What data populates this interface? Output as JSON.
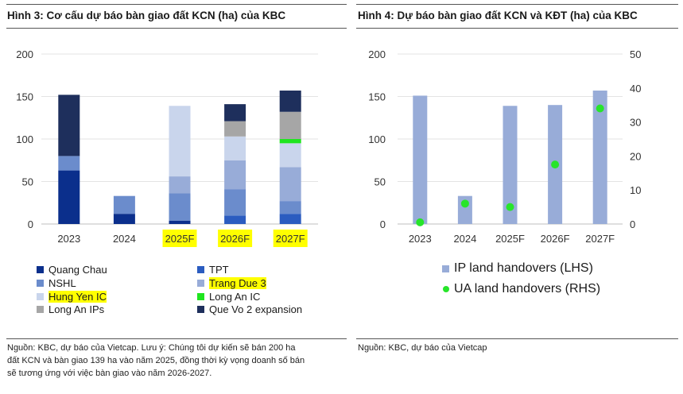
{
  "left": {
    "title": "Hình 3: Cơ cấu dự báo bàn giao đất KCN (ha) của KBC",
    "source": [
      "Nguồn: KBC, dự báo của Vietcap. Lưu ý: Chúng tôi dự kiến sẽ bán 200 ha",
      "đất KCN và bàn giao 139 ha vào năm 2025, đồng thời kỳ vọng doanh số bán",
      "sẽ tương ứng với việc bàn giao vào năm 2026-2027."
    ]
  },
  "right": {
    "title": "Hình 4: Dự báo bàn giao đất KCN và KĐT (ha) của KBC",
    "source": "Nguồn: KBC, dự báo của Vietcap"
  },
  "chart_data": [
    {
      "type": "bar",
      "stacked": true,
      "title": "Hình 3: Cơ cấu dự báo bàn giao đất KCN (ha) của KBC",
      "categories": [
        "2023",
        "2024",
        "2025F",
        "2026F",
        "2027F"
      ],
      "highlighted_categories": [
        "2025F",
        "2026F",
        "2027F"
      ],
      "ylim": [
        0,
        200
      ],
      "yticks": [
        "0",
        "50",
        "100",
        "150",
        "200"
      ],
      "grid": true,
      "series": [
        {
          "name": "Quang Chau",
          "color": "#0b2f8c",
          "values": [
            63,
            12,
            4,
            0,
            0
          ],
          "highlight": false
        },
        {
          "name": "TPT",
          "color": "#2b5cc0",
          "values": [
            0,
            0,
            0,
            10,
            12
          ],
          "highlight": false
        },
        {
          "name": "NSHL",
          "color": "#6b8ccc",
          "values": [
            17,
            21,
            32,
            31,
            15
          ],
          "highlight": false
        },
        {
          "name": "Trang Due 3",
          "color": "#98acd8",
          "values": [
            0,
            0,
            20,
            34,
            40
          ],
          "highlight": true
        },
        {
          "name": "Hung Yen IC",
          "color": "#c9d5ec",
          "values": [
            0,
            0,
            83,
            28,
            28
          ],
          "highlight": true
        },
        {
          "name": "Long An IC",
          "color": "#1fe51f",
          "values": [
            0,
            0,
            0,
            0,
            5
          ],
          "highlight": false
        },
        {
          "name": "Long An IPs",
          "color": "#a6a6a6",
          "values": [
            0,
            0,
            0,
            18,
            32
          ],
          "highlight": false
        },
        {
          "name": "Que Vo 2 expansion",
          "color": "#1e2f5c",
          "values": [
            72,
            0,
            0,
            20,
            25
          ],
          "highlight": false
        }
      ]
    },
    {
      "type": "bar",
      "title": "Hình 4: Dự báo bàn giao đất KCN và KĐT (ha) của KBC",
      "categories": [
        "2023",
        "2024",
        "2025F",
        "2026F",
        "2027F"
      ],
      "ylim": [
        0,
        200
      ],
      "yticks": [
        "0",
        "50",
        "100",
        "150",
        "200"
      ],
      "y2lim": [
        0,
        50
      ],
      "y2ticks": [
        "0",
        "10",
        "20",
        "30",
        "40",
        "50"
      ],
      "grid": true,
      "series": [
        {
          "name": "IP land handovers (LHS)",
          "type": "bar",
          "axis": "left",
          "color": "#98acd8",
          "values": [
            151,
            33,
            139,
            140,
            157
          ]
        },
        {
          "name": "UA land handovers (RHS)",
          "type": "scatter",
          "axis": "right",
          "color": "#27e52a",
          "values": [
            0.5,
            6,
            5,
            17.5,
            34
          ]
        }
      ]
    }
  ]
}
